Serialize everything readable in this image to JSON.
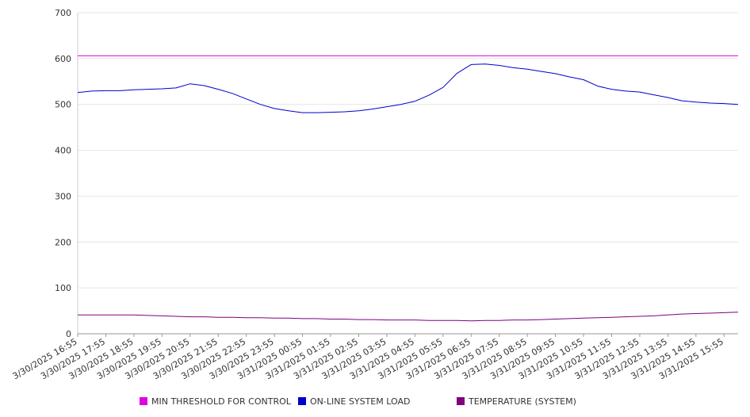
{
  "chart_data": {
    "type": "line",
    "title": "",
    "xlabel": "",
    "ylabel": "",
    "ylim": [
      0,
      700
    ],
    "yticks": [
      0,
      100,
      200,
      300,
      400,
      500,
      600,
      700
    ],
    "grid": true,
    "legend_position": "bottom",
    "x_tick_labels": [
      "3/30/2025 16:55",
      "3/30/2025 17:55",
      "3/30/2025 18:55",
      "3/30/2025 19:55",
      "3/30/2025 20:55",
      "3/30/2025 21:55",
      "3/30/2025 22:55",
      "3/30/2025 23:55",
      "3/31/2025 00:55",
      "3/31/2025 01:55",
      "3/31/2025 02:55",
      "3/31/2025 03:55",
      "3/31/2025 04:55",
      "3/31/2025 05:55",
      "3/31/2025 06:55",
      "3/31/2025 07:55",
      "3/31/2025 08:55",
      "3/31/2025 09:55",
      "3/31/2025 10:55",
      "3/31/2025 11:55",
      "3/31/2025 12:55",
      "3/31/2025 13:55",
      "3/31/2025 14:55",
      "3/31/2025 15:55"
    ],
    "x": [
      "3/30/2025 16:55",
      "3/30/2025 17:25",
      "3/30/2025 17:55",
      "3/30/2025 18:25",
      "3/30/2025 18:55",
      "3/30/2025 19:25",
      "3/30/2025 19:55",
      "3/30/2025 20:25",
      "3/30/2025 20:55",
      "3/30/2025 21:25",
      "3/30/2025 21:55",
      "3/30/2025 22:25",
      "3/30/2025 22:55",
      "3/30/2025 23:25",
      "3/30/2025 23:55",
      "3/31/2025 00:25",
      "3/31/2025 00:55",
      "3/31/2025 01:25",
      "3/31/2025 01:55",
      "3/31/2025 02:25",
      "3/31/2025 02:55",
      "3/31/2025 03:25",
      "3/31/2025 03:55",
      "3/31/2025 04:25",
      "3/31/2025 04:55",
      "3/31/2025 05:25",
      "3/31/2025 05:55",
      "3/31/2025 06:25",
      "3/31/2025 06:55",
      "3/31/2025 07:25",
      "3/31/2025 07:55",
      "3/31/2025 08:25",
      "3/31/2025 08:55",
      "3/31/2025 09:25",
      "3/31/2025 09:55",
      "3/31/2025 10:25",
      "3/31/2025 10:55",
      "3/31/2025 11:25",
      "3/31/2025 11:55",
      "3/31/2025 12:25",
      "3/31/2025 12:55",
      "3/31/2025 13:25",
      "3/31/2025 13:55",
      "3/31/2025 14:25",
      "3/31/2025 14:55",
      "3/31/2025 15:25",
      "3/31/2025 15:55",
      "3/31/2025 16:25"
    ],
    "series": [
      {
        "name": "MIN THRESHOLD FOR CONTROL",
        "color": "#e000e0",
        "values": [
          606,
          606,
          606,
          606,
          606,
          606,
          606,
          606,
          606,
          606,
          606,
          606,
          606,
          606,
          606,
          606,
          606,
          606,
          606,
          606,
          606,
          606,
          606,
          606,
          606,
          606,
          606,
          606,
          606,
          606,
          606,
          606,
          606,
          606,
          606,
          606,
          606,
          606,
          606,
          606,
          606,
          606,
          606,
          606,
          606,
          606,
          606,
          606
        ]
      },
      {
        "name": "ON-LINE SYSTEM LOAD",
        "color": "#0000cc",
        "values": [
          526,
          529,
          530,
          530,
          532,
          533,
          534,
          536,
          545,
          541,
          533,
          524,
          512,
          500,
          491,
          486,
          482,
          482,
          483,
          484,
          486,
          490,
          495,
          500,
          507,
          520,
          537,
          568,
          587,
          588,
          585,
          580,
          577,
          572,
          567,
          560,
          554,
          540,
          533,
          529,
          527,
          521,
          515,
          508,
          505,
          503,
          502,
          500
        ]
      },
      {
        "name": "TEMPERATURE (SYSTEM)",
        "color": "#800080",
        "values": [
          41,
          41,
          41,
          41,
          41,
          40,
          39,
          38,
          37,
          37,
          36,
          36,
          35,
          35,
          34,
          34,
          33,
          33,
          32,
          32,
          31,
          31,
          30,
          30,
          30,
          29,
          29,
          29,
          28,
          29,
          29,
          30,
          30,
          31,
          32,
          33,
          34,
          35,
          36,
          37,
          38,
          39,
          41,
          43,
          44,
          45,
          46,
          47
        ]
      }
    ]
  }
}
